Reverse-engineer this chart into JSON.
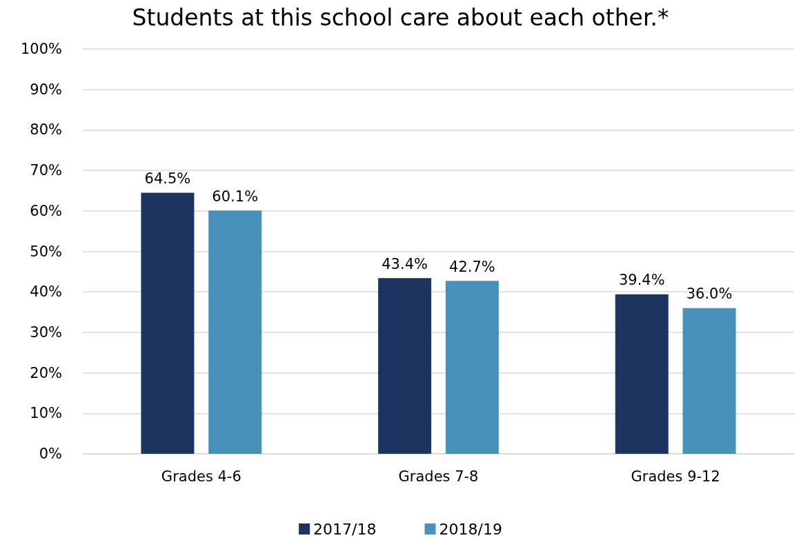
{
  "chart_data": {
    "type": "bar",
    "title": "Students at this school care about each other.*",
    "categories": [
      "Grades 4-6",
      "Grades 7-8",
      "Grades 9-12"
    ],
    "series": [
      {
        "name": "2017/18",
        "color": "#1d3461",
        "values": [
          64.5,
          43.4,
          39.4
        ],
        "value_labels": [
          "64.5%",
          "43.4%",
          "39.4%"
        ]
      },
      {
        "name": "2018/19",
        "color": "#4891bb",
        "values": [
          60.1,
          42.7,
          36.0
        ],
        "value_labels": [
          "60.1%",
          "42.7%",
          "36.0%"
        ]
      }
    ],
    "ylim": [
      0,
      100
    ],
    "yticks": [
      {
        "value": 0,
        "label": "0%"
      },
      {
        "value": 10,
        "label": "10%"
      },
      {
        "value": 20,
        "label": "20%"
      },
      {
        "value": 30,
        "label": "30%"
      },
      {
        "value": 40,
        "label": "40%"
      },
      {
        "value": 50,
        "label": "50%"
      },
      {
        "value": 60,
        "label": "60%"
      },
      {
        "value": 70,
        "label": "70%"
      },
      {
        "value": 80,
        "label": "80%"
      },
      {
        "value": 90,
        "label": "90%"
      },
      {
        "value": 100,
        "label": "100%"
      }
    ],
    "grid": "y",
    "legend": "bottom"
  }
}
